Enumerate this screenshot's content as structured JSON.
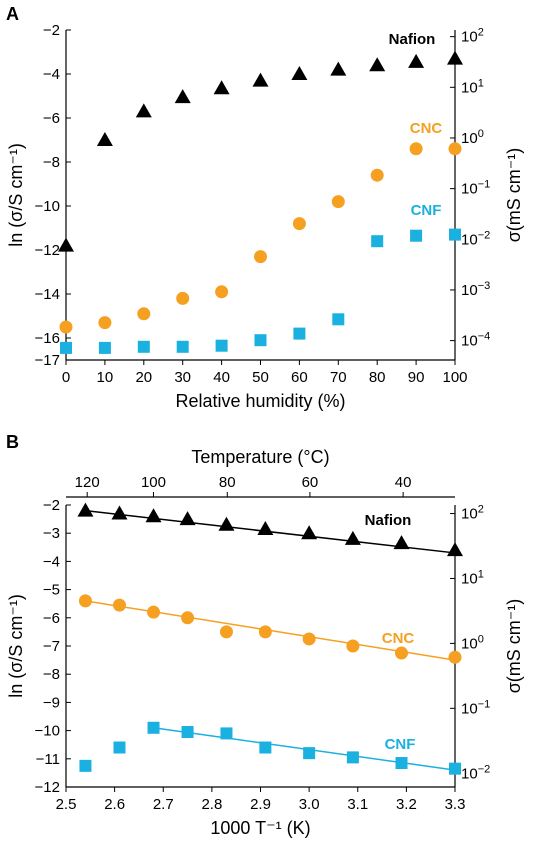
{
  "colors": {
    "nafion": "#000000",
    "cnc": "#f5a020",
    "cnf": "#1ab0e0"
  },
  "chart_data": [
    {
      "panel": "A",
      "type": "scatter",
      "xlabel": "Relative humidity (%)",
      "ylabel": "ln (σ/S cm⁻¹)",
      "ylabel_right": "σ(mS cm⁻¹)",
      "xlim": [
        0,
        100
      ],
      "ylim": [
        -17,
        -2
      ],
      "x_ticks": [
        0,
        10,
        20,
        30,
        40,
        50,
        60,
        70,
        80,
        90,
        100
      ],
      "y_ticks": [
        -17,
        -16,
        -14,
        -12,
        -10,
        -8,
        -6,
        -4,
        -2
      ],
      "right_ticks": [
        {
          "base": "10",
          "exp": "2",
          "ln": -2.303
        },
        {
          "base": "10",
          "exp": "1",
          "ln": -4.605
        },
        {
          "base": "10",
          "exp": "0",
          "ln": -6.908
        },
        {
          "base": "10",
          "exp": "-1",
          "ln": -9.21
        },
        {
          "base": "10",
          "exp": "-2",
          "ln": -11.513
        },
        {
          "base": "10",
          "exp": "-3",
          "ln": -13.816
        },
        {
          "base": "10",
          "exp": "-4",
          "ln": -16.118
        }
      ],
      "series": [
        {
          "name": "Nafion",
          "marker": "triangle",
          "color": "#000000",
          "x": [
            0,
            10,
            20,
            30,
            40,
            50,
            60,
            70,
            80,
            90,
            100
          ],
          "y": [
            -11.8,
            -7.0,
            -5.7,
            -5.05,
            -4.65,
            -4.3,
            -4.0,
            -3.8,
            -3.6,
            -3.45,
            -3.3
          ]
        },
        {
          "name": "CNC",
          "marker": "circle",
          "color": "#f5a020",
          "x": [
            0,
            10,
            20,
            30,
            40,
            50,
            60,
            70,
            80,
            90,
            100
          ],
          "y": [
            -15.5,
            -15.3,
            -14.9,
            -14.2,
            -13.9,
            -12.3,
            -10.8,
            -9.8,
            -8.6,
            -7.4,
            -7.4
          ]
        },
        {
          "name": "CNF",
          "marker": "square",
          "color": "#1ab0e0",
          "x": [
            0,
            10,
            20,
            30,
            40,
            50,
            60,
            70,
            80,
            90,
            100
          ],
          "y": [
            -16.45,
            -16.45,
            -16.4,
            -16.4,
            -16.35,
            -16.1,
            -15.8,
            -15.15,
            -11.6,
            -11.35,
            -11.3
          ]
        }
      ]
    },
    {
      "panel": "B",
      "type": "scatter",
      "xlabel": "1000 T⁻¹ (K)",
      "xlabel_top": "Temperature (°C)",
      "ylabel": "ln (σ/S cm⁻¹)",
      "ylabel_right": "σ(mS cm⁻¹)",
      "xlim": [
        2.5,
        3.3
      ],
      "ylim": [
        -12,
        -2
      ],
      "x_ticks": [
        2.5,
        2.6,
        2.7,
        2.8,
        2.9,
        3.0,
        3.1,
        3.2,
        3.3
      ],
      "x_ticks_top": [
        120,
        100,
        80,
        60,
        40
      ],
      "y_ticks": [
        -12,
        -11,
        -10,
        -9,
        -8,
        -7,
        -6,
        -5,
        -4,
        -3,
        -2
      ],
      "right_ticks": [
        {
          "base": "10",
          "exp": "2",
          "ln": -2.303
        },
        {
          "base": "10",
          "exp": "1",
          "ln": -4.605
        },
        {
          "base": "10",
          "exp": "0",
          "ln": -6.908
        },
        {
          "base": "10",
          "exp": "-1",
          "ln": -9.21
        },
        {
          "base": "10",
          "exp": "-2",
          "ln": -11.513
        }
      ],
      "series": [
        {
          "name": "Nafion",
          "marker": "triangle",
          "color": "#000000",
          "x": [
            2.54,
            2.61,
            2.68,
            2.75,
            2.83,
            2.91,
            3.0,
            3.09,
            3.19,
            3.3
          ],
          "y": [
            -2.2,
            -2.3,
            -2.4,
            -2.5,
            -2.7,
            -2.85,
            -3.0,
            -3.2,
            -3.35,
            -3.6
          ],
          "fit": [
            [
              2.54,
              -2.2
            ],
            [
              3.3,
              -3.7
            ]
          ]
        },
        {
          "name": "CNC",
          "marker": "circle",
          "color": "#f5a020",
          "x": [
            2.54,
            2.61,
            2.68,
            2.75,
            2.83,
            2.91,
            3.0,
            3.09,
            3.19,
            3.3
          ],
          "y": [
            -5.4,
            -5.55,
            -5.8,
            -6.0,
            -6.5,
            -6.5,
            -6.75,
            -7.0,
            -7.25,
            -7.4
          ],
          "fit": [
            [
              2.54,
              -5.4
            ],
            [
              3.3,
              -7.5
            ]
          ]
        },
        {
          "name": "CNF",
          "marker": "square",
          "color": "#1ab0e0",
          "x": [
            2.54,
            2.61,
            2.68,
            2.75,
            2.83,
            2.91,
            3.0,
            3.09,
            3.19,
            3.3
          ],
          "y": [
            -11.25,
            -10.6,
            -9.9,
            -10.05,
            -10.1,
            -10.6,
            -10.8,
            -10.95,
            -11.15,
            -11.35
          ],
          "fit": [
            [
              2.68,
              -9.9
            ],
            [
              3.3,
              -11.4
            ]
          ]
        }
      ]
    }
  ]
}
